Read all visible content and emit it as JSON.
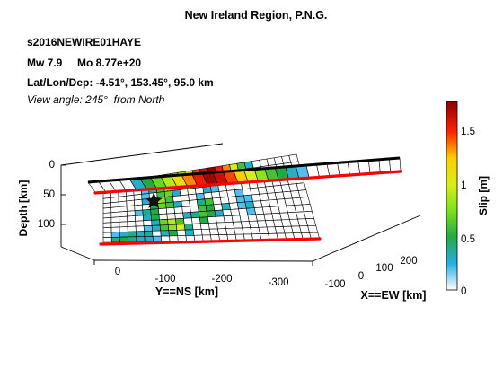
{
  "chart_data": {
    "type": "heatmap",
    "title": "New Ireland Region, P.N.G.",
    "event_id": "s2016NEWIRE01HAYE",
    "magnitude_text": "Mw 7.9     Mo 8.77e+20",
    "location_text": "Lat/Lon/Dep: -4.51°, 153.45°, 95.0 km",
    "view_text": "View angle: 245°  from North",
    "axes": {
      "depth": {
        "label": "Depth [km]",
        "ticks": [
          "0",
          "50",
          "100"
        ]
      },
      "ns": {
        "label": "Y==NS  [km]",
        "ticks": [
          "0",
          "-100",
          "-200",
          "-300"
        ]
      },
      "ew": {
        "label": "X==EW [km]",
        "ticks": [
          "200",
          "100",
          "0",
          "-100"
        ]
      }
    },
    "colorbar": {
      "label": "Slip [m]",
      "ticks": [
        "1.5",
        "1",
        "0.5",
        "0"
      ],
      "tick_values": [
        1.5,
        1.0,
        0.5,
        0.0
      ],
      "range": [
        0,
        1.75
      ]
    },
    "grid": {
      "rows": 12,
      "cols": 26
    },
    "hypocenter": {
      "row": 4,
      "col": 6
    },
    "slip_cells": [
      {
        "r": 0,
        "c": 8,
        "v": 0.4
      },
      {
        "r": 0,
        "c": 9,
        "v": 0.7
      },
      {
        "r": 0,
        "c": 10,
        "v": 0.8
      },
      {
        "r": 0,
        "c": 11,
        "v": 1.2
      },
      {
        "r": 0,
        "c": 12,
        "v": 1.4
      },
      {
        "r": 0,
        "c": 13,
        "v": 1.6
      },
      {
        "r": 0,
        "c": 14,
        "v": 1.75
      },
      {
        "r": 0,
        "c": 15,
        "v": 1.5
      },
      {
        "r": 0,
        "c": 16,
        "v": 1.3
      },
      {
        "r": 0,
        "c": 17,
        "v": 1.0
      },
      {
        "r": 0,
        "c": 18,
        "v": 0.6
      },
      {
        "r": 0,
        "c": 19,
        "v": 0.3
      },
      {
        "r": 1,
        "c": 7,
        "v": 0.3
      },
      {
        "r": 1,
        "c": 8,
        "v": 0.6
      },
      {
        "r": 1,
        "c": 9,
        "v": 0.9
      },
      {
        "r": 1,
        "c": 10,
        "v": 1.0
      },
      {
        "r": 1,
        "c": 11,
        "v": 1.1
      },
      {
        "r": 1,
        "c": 12,
        "v": 1.2
      },
      {
        "r": 1,
        "c": 13,
        "v": 1.4
      },
      {
        "r": 1,
        "c": 14,
        "v": 1.5
      },
      {
        "r": 1,
        "c": 15,
        "v": 1.3
      },
      {
        "r": 1,
        "c": 16,
        "v": 1.1
      },
      {
        "r": 1,
        "c": 17,
        "v": 0.8
      },
      {
        "r": 1,
        "c": 18,
        "v": 0.5
      },
      {
        "r": 1,
        "c": 19,
        "v": 0.3
      },
      {
        "r": 1,
        "c": 20,
        "v": 0.2
      },
      {
        "r": 2,
        "c": 5,
        "v": 0.2
      },
      {
        "r": 2,
        "c": 6,
        "v": 0.4
      },
      {
        "r": 2,
        "c": 7,
        "v": 0.6
      },
      {
        "r": 2,
        "c": 8,
        "v": 0.8
      },
      {
        "r": 2,
        "c": 9,
        "v": 0.7
      },
      {
        "r": 2,
        "c": 10,
        "v": 0.5
      },
      {
        "r": 2,
        "c": 11,
        "v": 0.6
      },
      {
        "r": 2,
        "c": 12,
        "v": 0.8
      },
      {
        "r": 2,
        "c": 13,
        "v": 1.0
      },
      {
        "r": 2,
        "c": 14,
        "v": 0.9
      },
      {
        "r": 2,
        "c": 15,
        "v": 0.7
      },
      {
        "r": 2,
        "c": 16,
        "v": 0.5
      },
      {
        "r": 2,
        "c": 17,
        "v": 0.3
      },
      {
        "r": 2,
        "c": 18,
        "v": 0.2
      },
      {
        "r": 3,
        "c": 5,
        "v": 0.2
      },
      {
        "r": 3,
        "c": 7,
        "v": 0.6
      },
      {
        "r": 3,
        "c": 8,
        "v": 0.7
      },
      {
        "r": 3,
        "c": 9,
        "v": 0.3
      },
      {
        "r": 3,
        "c": 13,
        "v": 0.3
      },
      {
        "r": 3,
        "c": 14,
        "v": 0.2
      },
      {
        "r": 4,
        "c": 5,
        "v": 0.3
      },
      {
        "r": 4,
        "c": 6,
        "v": 0.6
      },
      {
        "r": 4,
        "c": 7,
        "v": 0.8
      },
      {
        "r": 4,
        "c": 8,
        "v": 0.6
      },
      {
        "r": 4,
        "c": 12,
        "v": 0.2
      },
      {
        "r": 4,
        "c": 17,
        "v": 0.2
      },
      {
        "r": 5,
        "c": 6,
        "v": 0.5
      },
      {
        "r": 5,
        "c": 7,
        "v": 0.7
      },
      {
        "r": 5,
        "c": 8,
        "v": 0.6
      },
      {
        "r": 5,
        "c": 9,
        "v": 0.3
      },
      {
        "r": 5,
        "c": 12,
        "v": 0.4
      },
      {
        "r": 5,
        "c": 13,
        "v": 0.6
      },
      {
        "r": 5,
        "c": 17,
        "v": 0.2
      },
      {
        "r": 5,
        "c": 18,
        "v": 0.2
      },
      {
        "r": 6,
        "c": 4,
        "v": 0.2
      },
      {
        "r": 6,
        "c": 5,
        "v": 0.4
      },
      {
        "r": 6,
        "c": 6,
        "v": 0.5
      },
      {
        "r": 6,
        "c": 12,
        "v": 0.6
      },
      {
        "r": 6,
        "c": 13,
        "v": 0.5
      },
      {
        "r": 6,
        "c": 15,
        "v": 0.3
      },
      {
        "r": 6,
        "c": 17,
        "v": 0.2
      },
      {
        "r": 6,
        "c": 18,
        "v": 0.3
      },
      {
        "r": 7,
        "c": 5,
        "v": 0.3
      },
      {
        "r": 7,
        "c": 6,
        "v": 0.5
      },
      {
        "r": 7,
        "c": 10,
        "v": 0.3
      },
      {
        "r": 7,
        "c": 11,
        "v": 0.4
      },
      {
        "r": 7,
        "c": 12,
        "v": 0.6
      },
      {
        "r": 7,
        "c": 13,
        "v": 0.5
      },
      {
        "r": 7,
        "c": 14,
        "v": 0.3
      },
      {
        "r": 7,
        "c": 18,
        "v": 0.2
      },
      {
        "r": 8,
        "c": 6,
        "v": 0.3
      },
      {
        "r": 8,
        "c": 7,
        "v": 0.7
      },
      {
        "r": 8,
        "c": 8,
        "v": 0.9
      },
      {
        "r": 8,
        "c": 9,
        "v": 0.6
      },
      {
        "r": 8,
        "c": 12,
        "v": 0.5
      },
      {
        "r": 9,
        "c": 5,
        "v": 0.2
      },
      {
        "r": 9,
        "c": 6,
        "v": 0.3
      },
      {
        "r": 9,
        "c": 7,
        "v": 0.6
      },
      {
        "r": 9,
        "c": 8,
        "v": 0.8
      },
      {
        "r": 9,
        "c": 9,
        "v": 1.0
      },
      {
        "r": 9,
        "c": 10,
        "v": 0.4
      },
      {
        "r": 10,
        "c": 1,
        "v": 0.2
      },
      {
        "r": 10,
        "c": 2,
        "v": 0.3
      },
      {
        "r": 10,
        "c": 3,
        "v": 0.4
      },
      {
        "r": 10,
        "c": 4,
        "v": 0.3
      },
      {
        "r": 10,
        "c": 5,
        "v": 0.4
      },
      {
        "r": 10,
        "c": 7,
        "v": 0.3
      },
      {
        "r": 10,
        "c": 8,
        "v": 0.5
      },
      {
        "r": 10,
        "c": 10,
        "v": 0.3
      },
      {
        "r": 11,
        "c": 1,
        "v": 0.4
      },
      {
        "r": 11,
        "c": 2,
        "v": 0.5
      },
      {
        "r": 11,
        "c": 3,
        "v": 0.4
      },
      {
        "r": 11,
        "c": 4,
        "v": 0.3
      },
      {
        "r": 11,
        "c": 5,
        "v": 0.3
      },
      {
        "r": 11,
        "c": 6,
        "v": 0.2
      }
    ],
    "colors": {
      "trace": "#ff0000",
      "fault_top": "#000000",
      "grid": "#000000"
    }
  }
}
